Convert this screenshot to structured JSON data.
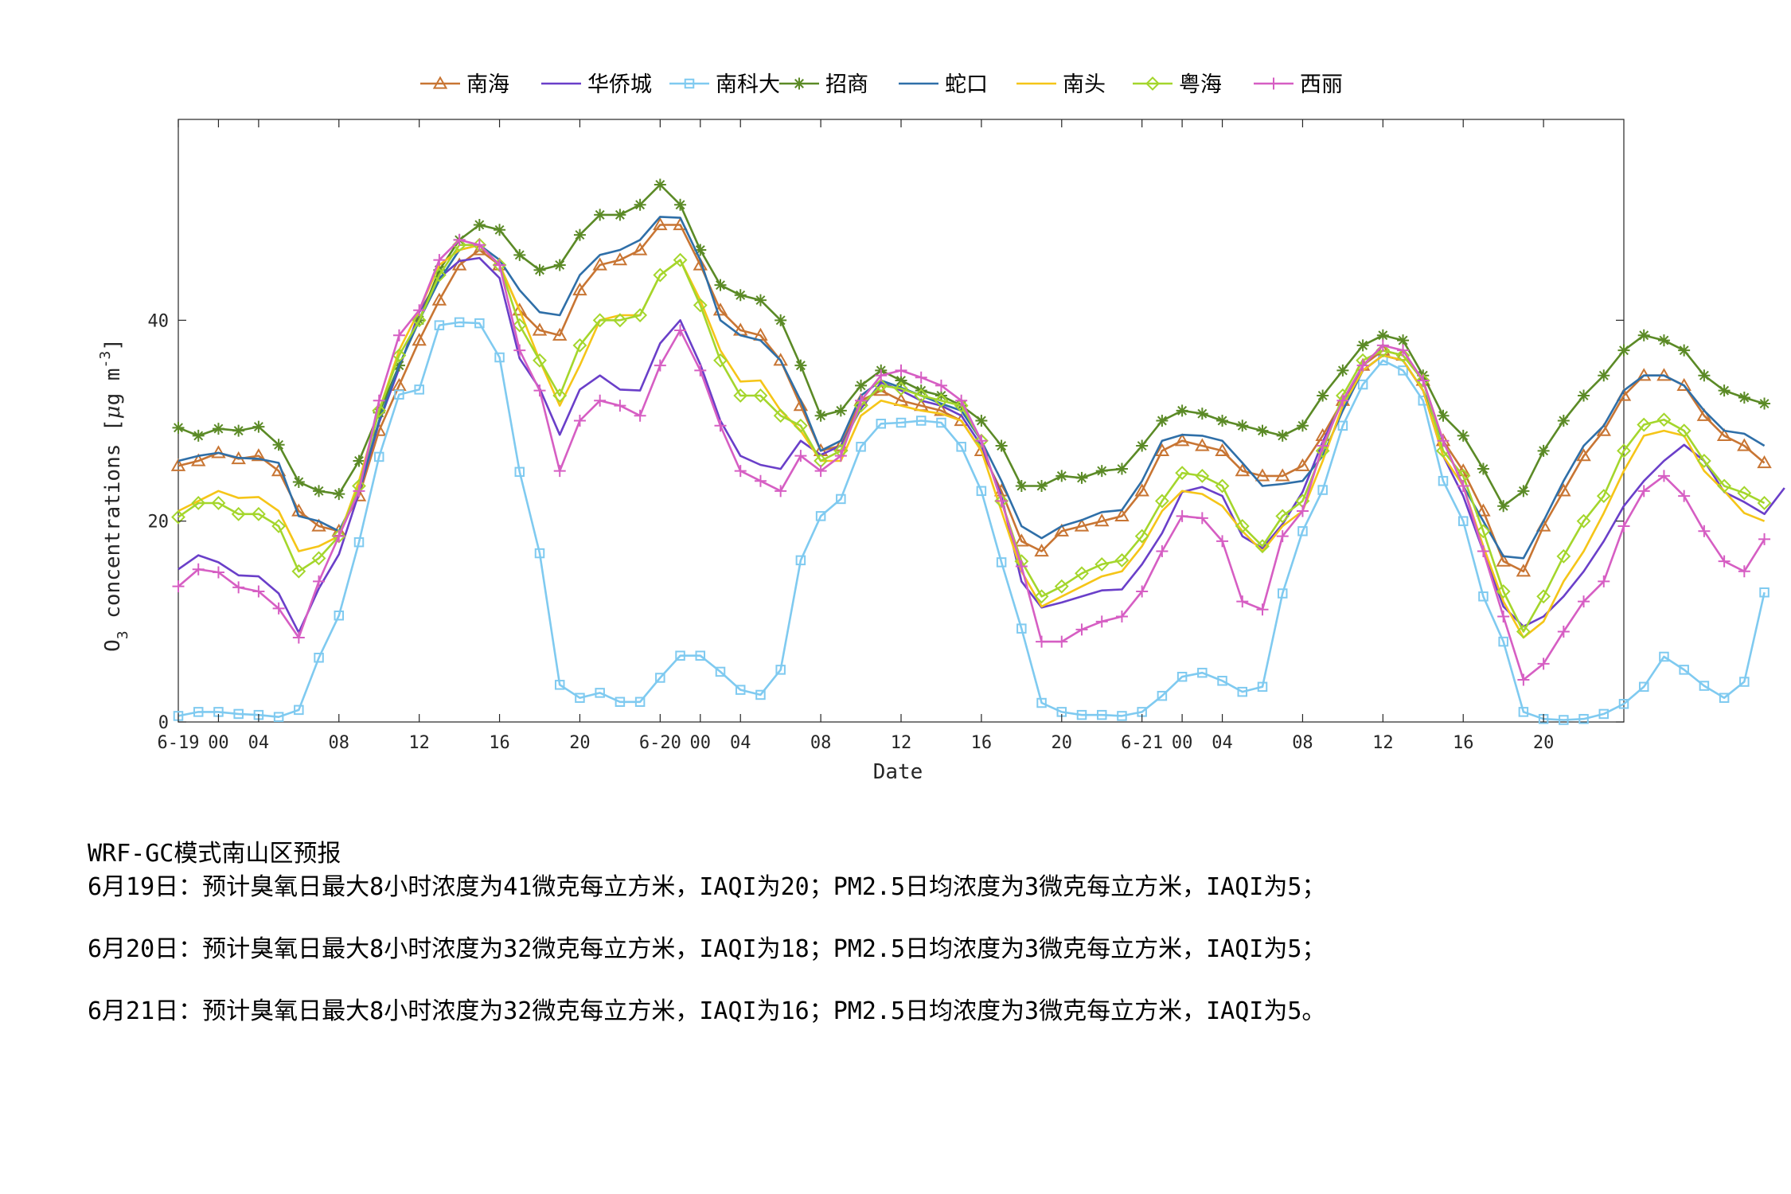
{
  "chart_data": {
    "type": "line",
    "title": "",
    "xlabel": "Date",
    "ylabel": "O3 concentrations [µg m^-3]",
    "ylim": [
      0,
      60
    ],
    "xlim": [
      0,
      72
    ],
    "yticks": [
      0,
      20,
      40
    ],
    "xticks": [
      {
        "x": 0,
        "label": "6-19"
      },
      {
        "x": 2,
        "label": "00"
      },
      {
        "x": 4,
        "label": "04"
      },
      {
        "x": 8,
        "label": "08"
      },
      {
        "x": 12,
        "label": "12"
      },
      {
        "x": 16,
        "label": "16"
      },
      {
        "x": 20,
        "label": "20"
      },
      {
        "x": 24,
        "label": "6-20"
      },
      {
        "x": 26,
        "label": "00"
      },
      {
        "x": 28,
        "label": "04"
      },
      {
        "x": 32,
        "label": "08"
      },
      {
        "x": 36,
        "label": "12"
      },
      {
        "x": 40,
        "label": "16"
      },
      {
        "x": 44,
        "label": "20"
      },
      {
        "x": 48,
        "label": "6-21"
      },
      {
        "x": 50,
        "label": "00"
      },
      {
        "x": 52,
        "label": "04"
      },
      {
        "x": 56,
        "label": "08"
      },
      {
        "x": 60,
        "label": "12"
      },
      {
        "x": 64,
        "label": "16"
      },
      {
        "x": 68,
        "label": "20"
      }
    ],
    "legend_position": "top",
    "series": [
      {
        "name": "南海",
        "color": "#c87533",
        "marker": "triangle",
        "values": [
          25.5,
          26,
          26.8,
          26.2,
          26.5,
          25,
          21,
          19.5,
          19,
          22.5,
          29,
          33.5,
          38,
          42,
          45.5,
          47,
          45.5,
          41,
          39,
          38.5,
          43,
          45.5,
          46,
          47,
          49.5,
          49.5,
          45.5,
          41,
          39,
          38.5,
          36,
          31.5,
          27,
          27.5,
          32,
          33,
          32,
          31.5,
          31,
          30,
          27,
          23,
          18,
          17,
          19,
          19.5,
          20,
          20.5,
          23,
          27,
          28,
          27.5,
          27,
          25,
          24.5,
          24.5,
          25.5,
          28.5,
          32,
          35.5,
          37,
          36.5,
          34,
          28,
          25,
          21,
          16,
          15,
          19.5,
          23,
          26.5,
          29,
          32.5,
          34.5,
          34.5,
          33.5,
          30.5,
          28.5,
          27.5,
          25.8
        ]
      },
      {
        "name": "华侨城",
        "color": "#6a3fc9",
        "marker": "none",
        "values": [
          15.2,
          16.6,
          15.9,
          14.6,
          14.5,
          12.8,
          8.9,
          13.3,
          16.7,
          22.8,
          29.8,
          35.2,
          40.8,
          44.2,
          45.9,
          46.2,
          44.2,
          36.2,
          33.2,
          28.6,
          33.1,
          34.5,
          33.1,
          33,
          37.7,
          40,
          35.6,
          30,
          26.5,
          25.6,
          25.2,
          28,
          26.6,
          27.5,
          31.2,
          33.8,
          33,
          32,
          31.5,
          30.5,
          27.5,
          22.5,
          14,
          11.4,
          11.9,
          12.5,
          13.1,
          13.2,
          15.7,
          18.8,
          22.9,
          23.4,
          22.5,
          18.5,
          17.3,
          19.7,
          22.9,
          27.9,
          32,
          35,
          36.5,
          36,
          33,
          26.5,
          22.5,
          17,
          11.5,
          9.5,
          10.5,
          12.5,
          15,
          18,
          21.5,
          24,
          26,
          27.6,
          26,
          22.9,
          21.9,
          20.7,
          23.3
        ]
      },
      {
        "name": "南科大",
        "color": "#7fcaf0",
        "marker": "square",
        "values": [
          0.6,
          1,
          1,
          0.8,
          0.7,
          0.5,
          1.2,
          6.4,
          10.6,
          17.9,
          26.4,
          32.6,
          33.1,
          39.5,
          39.8,
          39.7,
          36.3,
          24.9,
          16.8,
          3.7,
          2.4,
          2.9,
          2.0,
          2.0,
          4.4,
          6.6,
          6.6,
          5.0,
          3.2,
          2.7,
          5.2,
          16.1,
          20.5,
          22.2,
          27.4,
          29.7,
          29.8,
          30,
          29.8,
          27.4,
          23,
          15.9,
          9.3,
          1.9,
          1,
          0.7,
          0.7,
          0.6,
          1,
          2.6,
          4.5,
          4.9,
          4.1,
          3,
          3.5,
          12.8,
          19,
          23.1,
          29.5,
          33.6,
          36,
          35,
          32,
          24,
          20,
          12.5,
          8,
          1,
          0.3,
          0.2,
          0.3,
          0.8,
          1.8,
          3.5,
          6.5,
          5.2,
          3.6,
          2.4,
          4,
          12.9
        ]
      },
      {
        "name": "招商",
        "color": "#5b8a26",
        "marker": "star",
        "values": [
          29.3,
          28.5,
          29.2,
          29,
          29.4,
          27.6,
          23.9,
          23,
          22.7,
          26,
          30.8,
          35.5,
          40,
          45,
          48,
          49.5,
          49,
          46.5,
          45,
          45.5,
          48.5,
          50.5,
          50.5,
          51.5,
          53.5,
          51.5,
          47,
          43.5,
          42.5,
          42,
          40,
          35.5,
          30.5,
          31,
          33.5,
          35,
          34,
          33,
          32.5,
          31.5,
          30,
          27.5,
          23.5,
          23.5,
          24.5,
          24.3,
          25,
          25.2,
          27.5,
          30,
          31,
          30.7,
          30,
          29.5,
          29,
          28.5,
          29.5,
          32.5,
          35,
          37.5,
          38.5,
          38,
          34.5,
          30.5,
          28.5,
          25.2,
          21.5,
          23,
          27,
          30,
          32.5,
          34.5,
          37,
          38.5,
          38,
          37,
          34.5,
          33,
          32.3,
          31.7
        ]
      },
      {
        "name": "蛇口",
        "color": "#2f6fa8",
        "marker": "none",
        "values": [
          26,
          26.5,
          26.8,
          26.3,
          26.2,
          25.8,
          20.5,
          20,
          19,
          23,
          30,
          35.5,
          40,
          44,
          47,
          47.5,
          46,
          43,
          40.8,
          40.5,
          44.5,
          46.5,
          47,
          48,
          50.3,
          50.2,
          46,
          40,
          38.5,
          38,
          36,
          32,
          27,
          28,
          32.5,
          34,
          33.3,
          32.5,
          31.7,
          31,
          28,
          24,
          19.5,
          18.3,
          19.5,
          20.1,
          20.9,
          21.1,
          24,
          28,
          28.6,
          28.5,
          28,
          25.8,
          23.5,
          23.7,
          24,
          26.5,
          31,
          35,
          36.5,
          36,
          33,
          28,
          23.5,
          20,
          16.5,
          16.3,
          20,
          24,
          27.5,
          29.5,
          33,
          34.5,
          34.5,
          33.5,
          31,
          29,
          28.7,
          27.5
        ]
      },
      {
        "name": "南头",
        "color": "#f5c518",
        "marker": "none",
        "values": [
          21,
          22,
          23,
          22.3,
          22.4,
          21,
          17,
          17.5,
          18.5,
          24,
          31,
          37,
          41,
          45.5,
          47,
          47.5,
          45.5,
          41,
          36,
          31.5,
          35.5,
          40,
          40.5,
          40.5,
          44.5,
          46,
          42,
          37,
          33.9,
          34,
          31,
          29,
          26,
          26,
          30.5,
          32,
          31.5,
          31,
          30.7,
          30,
          27,
          21,
          15,
          11.5,
          12.5,
          13.5,
          14.5,
          15,
          17.5,
          21,
          23,
          22.7,
          21.5,
          19,
          17,
          19.5,
          21,
          26,
          31.5,
          35,
          36.5,
          36,
          33,
          26.5,
          23.5,
          17.5,
          12,
          8.4,
          10,
          14,
          17,
          20.8,
          25,
          28.5,
          29,
          28.5,
          25,
          23,
          20.8,
          20
        ]
      },
      {
        "name": "粤海",
        "color": "#a4d62c",
        "marker": "diamond",
        "values": [
          20.4,
          21.8,
          21.8,
          20.7,
          20.7,
          19.5,
          15,
          16.3,
          18.5,
          23.5,
          31,
          36.5,
          40,
          44.5,
          47.5,
          47.5,
          45.5,
          39.5,
          36,
          32.5,
          37.5,
          40,
          40,
          40.5,
          44.5,
          46,
          41.5,
          36,
          32.5,
          32.5,
          30.5,
          29.5,
          26,
          27,
          31.5,
          33.5,
          33.2,
          32.5,
          32,
          31.5,
          28,
          22,
          16,
          12.5,
          13.5,
          14.8,
          15.7,
          16.1,
          18.5,
          22,
          24.8,
          24.5,
          23.5,
          19.5,
          17.5,
          20.5,
          22,
          27,
          32.5,
          36,
          37,
          36.5,
          34,
          27,
          24.5,
          19,
          13,
          9,
          12.5,
          16.5,
          20,
          22.5,
          27,
          29.6,
          30.1,
          29,
          26,
          23.5,
          22.8,
          21.8
        ]
      },
      {
        "name": "西丽",
        "color": "#d65ec3",
        "marker": "plus",
        "values": [
          13.5,
          15.2,
          14.9,
          13.4,
          13,
          11.3,
          8.4,
          14,
          18.5,
          23,
          32,
          38.5,
          41,
          46,
          48,
          47.5,
          45.5,
          37,
          33,
          25,
          30,
          32,
          31.5,
          30.5,
          35.5,
          39,
          35,
          29.5,
          25,
          24,
          23,
          26.5,
          25,
          26.5,
          32,
          34.5,
          35,
          34.3,
          33.5,
          32,
          28,
          22,
          15.5,
          8,
          8,
          9.2,
          10,
          10.5,
          13,
          17,
          20.5,
          20.3,
          18,
          12,
          11.2,
          18.5,
          21,
          27.5,
          32,
          35.5,
          37.5,
          37,
          34,
          28,
          23.5,
          17,
          10.5,
          4.2,
          5.8,
          9,
          12,
          14,
          19.5,
          23,
          24.5,
          22.5,
          19,
          16,
          15,
          18.2
        ]
      }
    ]
  },
  "notes": {
    "title": "WRF-GC模式南山区预报",
    "lines": [
      "6月19日：预计臭氧日最大8小时浓度为41微克每立方米，IAQI为20；PM2.5日均浓度为3微克每立方米，IAQI为5；",
      "6月20日：预计臭氧日最大8小时浓度为32微克每立方米，IAQI为18；PM2.5日均浓度为3微克每立方米，IAQI为5；",
      "6月21日：预计臭氧日最大8小时浓度为32微克每立方米，IAQI为16；PM2.5日均浓度为3微克每立方米，IAQI为5。"
    ]
  }
}
